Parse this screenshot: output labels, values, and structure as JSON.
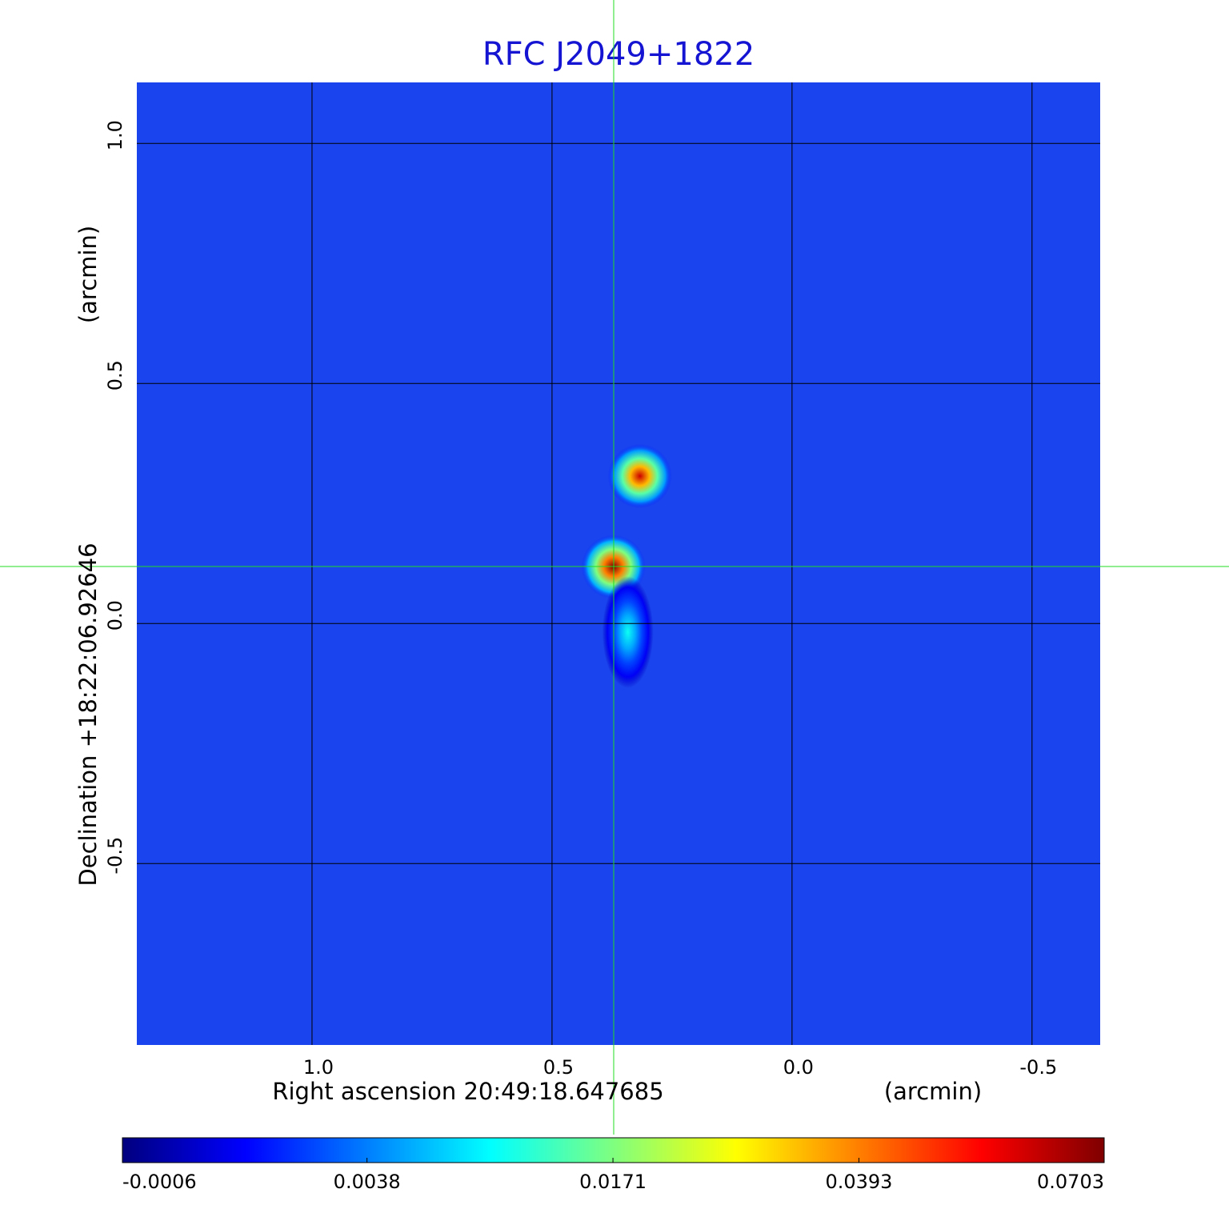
{
  "chart_data": {
    "type": "image",
    "title": "RFC J2049+1822",
    "xlabel": "Right ascension  20:49:18.647685",
    "xunit": "(arcmin)",
    "ylabel": "Declination  +18:22:06.92646",
    "yunit": "(arcmin)",
    "xlim": [
      1.365,
      -0.642
    ],
    "ylim": [
      -0.878,
      1.127
    ],
    "xticks": [
      {
        "value": 1,
        "label": "1.0"
      },
      0.5,
      {
        "value": 0,
        "label": "0.0"
      },
      -0.5
    ],
    "yticks": [
      {
        "value": 1,
        "label": "1.0"
      },
      0.5,
      {
        "value": 0,
        "label": "0.0"
      },
      -0.5
    ],
    "grid": true,
    "colormap": [
      "#00007f",
      "#0000ff",
      "#007fff",
      "#00ffff",
      "#7fff7f",
      "#ffff00",
      "#ff7f00",
      "#ff0000",
      "#7f0000"
    ],
    "colorbar_scale": "sqrt",
    "clim": [
      -0.0006,
      0.0703
    ],
    "colorbar_ticks": [
      -0.0006,
      0.0038,
      0.0171,
      0.0393,
      0.0703
    ],
    "sources": {
      "x": [
        0.372,
        0.317,
        0.342
      ],
      "y": [
        0.118,
        0.307,
        -0.018
      ],
      "values": [
        0.0703,
        0.06,
        0.01
      ]
    }
  }
}
